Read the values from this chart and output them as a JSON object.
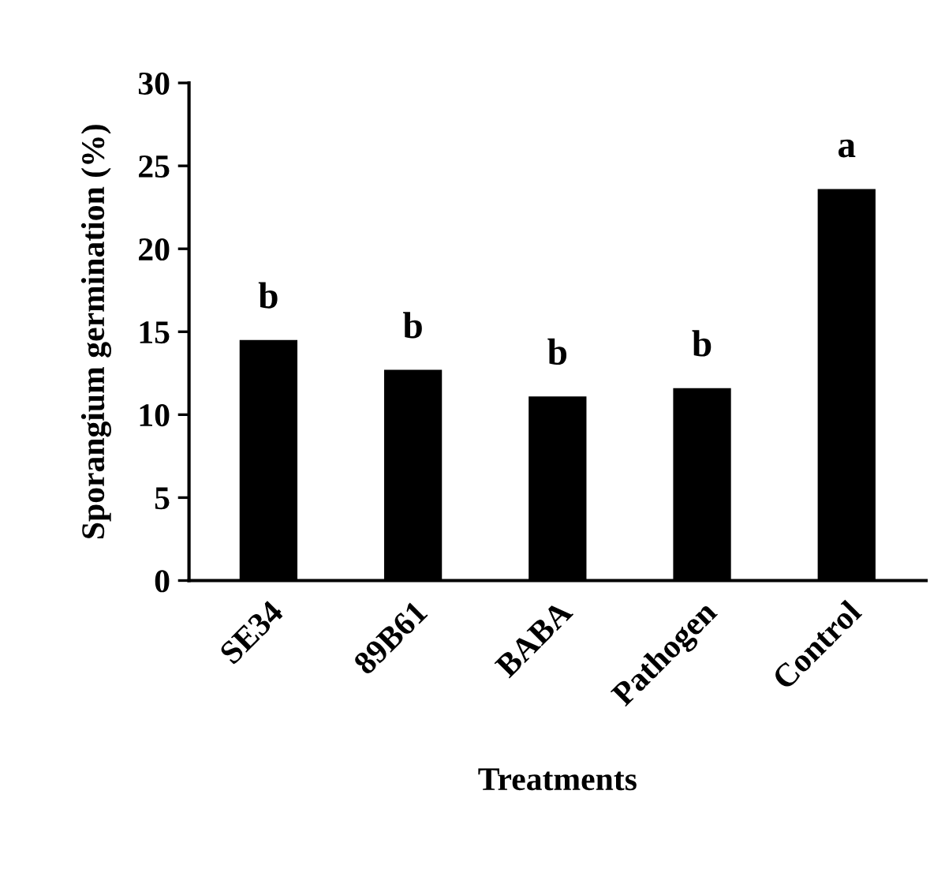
{
  "chart_data": {
    "type": "bar",
    "xlabel": "Treatments",
    "ylabel": "Sporangium germination (%)",
    "categories": [
      "SE34",
      "89B61",
      "BABA",
      "Pathogen",
      "Control"
    ],
    "values": [
      14.5,
      12.7,
      11.1,
      11.6,
      23.6
    ],
    "color": "#000000",
    "ylim": [
      0,
      30
    ],
    "yticks": [
      0,
      5,
      10,
      15,
      20,
      25,
      30
    ],
    "grid": false,
    "annotations": [
      {
        "text": "b",
        "x": "SE34",
        "y": 14.5
      },
      {
        "text": "b",
        "x": "89B61",
        "y": 12.7
      },
      {
        "text": "b",
        "x": "BABA",
        "y": 11.1
      },
      {
        "text": "b",
        "x": "Pathogen",
        "y": 11.6
      },
      {
        "text": "a",
        "x": "Control",
        "y": 23.6
      }
    ]
  }
}
